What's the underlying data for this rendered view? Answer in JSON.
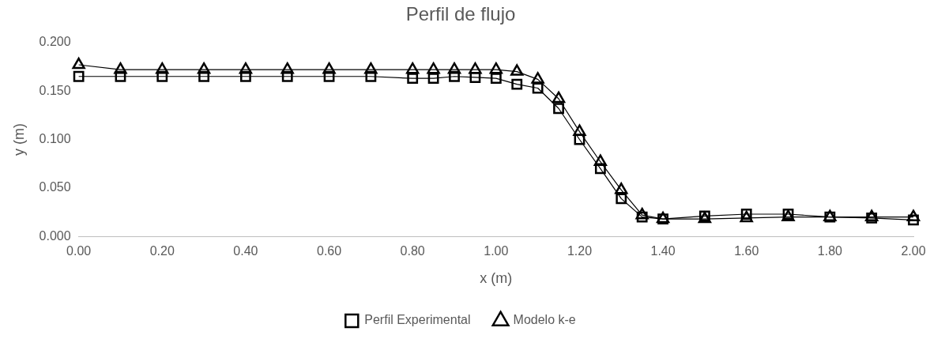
{
  "chart_data": {
    "type": "line",
    "title": "Perfil de flujo",
    "xlabel": "x (m)",
    "ylabel": "y (m)",
    "xlim": [
      0,
      2
    ],
    "xticks": [
      {
        "value": 0,
        "label": "0.00"
      },
      {
        "value": 0.2,
        "label": "0.20"
      },
      {
        "value": 0.4,
        "label": "0.40"
      },
      {
        "value": 0.6,
        "label": "0.60"
      },
      {
        "value": 0.8,
        "label": "0.80"
      },
      {
        "value": 1,
        "label": "1.00"
      },
      {
        "value": 1.2,
        "label": "1.20"
      },
      {
        "value": 1.4,
        "label": "1.40"
      },
      {
        "value": 1.6,
        "label": "1.60"
      },
      {
        "value": 1.8,
        "label": "1.80"
      },
      {
        "value": 2,
        "label": "2.00"
      }
    ],
    "ylim": [
      0,
      0.2
    ],
    "yticks": [
      {
        "value": 0,
        "label": "0.000"
      },
      {
        "value": 0.05,
        "label": "0.050"
      },
      {
        "value": 0.1,
        "label": "0.100"
      },
      {
        "value": 0.15,
        "label": "0.150"
      },
      {
        "value": 0.2,
        "label": "0.200"
      }
    ],
    "grid": false,
    "legend": "bottom",
    "line_style": "solid",
    "series": [
      {
        "name": "Perfil Experimental",
        "color": "#000000",
        "marker": "square",
        "x": [
          0,
          0.1,
          0.2,
          0.3,
          0.4,
          0.5,
          0.6,
          0.7,
          0.8,
          0.85,
          0.9,
          0.95,
          1.0,
          1.05,
          1.1,
          1.15,
          1.2,
          1.25,
          1.3,
          1.35,
          1.4,
          1.5,
          1.6,
          1.7,
          1.8,
          1.9,
          2.0
        ],
        "values": [
          0.165,
          0.165,
          0.165,
          0.165,
          0.165,
          0.165,
          0.165,
          0.165,
          0.163,
          0.163,
          0.165,
          0.164,
          0.163,
          0.157,
          0.153,
          0.132,
          0.1,
          0.07,
          0.039,
          0.02,
          0.018,
          0.021,
          0.023,
          0.023,
          0.02,
          0.019,
          0.017
        ]
      },
      {
        "name": "Modelo k-e",
        "color": "#000000",
        "marker": "triangle",
        "x": [
          0,
          0.1,
          0.2,
          0.3,
          0.4,
          0.5,
          0.6,
          0.7,
          0.8,
          0.85,
          0.9,
          0.95,
          1.0,
          1.05,
          1.1,
          1.15,
          1.2,
          1.25,
          1.3,
          1.35,
          1.4,
          1.5,
          1.6,
          1.7,
          1.8,
          1.9,
          2.0
        ],
        "values": [
          0.177,
          0.172,
          0.172,
          0.172,
          0.172,
          0.172,
          0.172,
          0.172,
          0.172,
          0.172,
          0.172,
          0.172,
          0.172,
          0.17,
          0.162,
          0.142,
          0.108,
          0.077,
          0.048,
          0.022,
          0.018,
          0.018,
          0.019,
          0.02,
          0.02,
          0.02,
          0.02
        ]
      }
    ]
  }
}
